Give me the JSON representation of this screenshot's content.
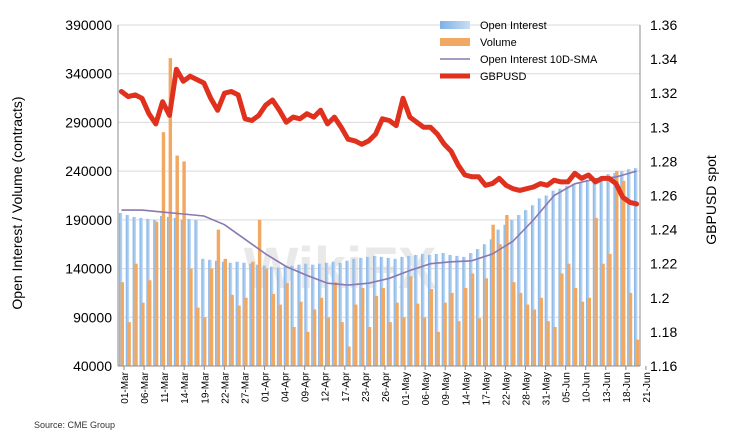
{
  "chart_data": {
    "type": "bar",
    "title": "",
    "ylabel_left": "Open Interest / Volume (contracts)",
    "ylabel_right": "GBPUSD spot",
    "ylim_left": [
      40000,
      390000
    ],
    "yticks_left": [
      40000,
      90000,
      140000,
      190000,
      240000,
      290000,
      340000,
      390000
    ],
    "ylim_right": [
      1.16,
      1.36
    ],
    "yticks_right": [
      "1.16",
      "1.18",
      "1.2",
      "1.22",
      "1.24",
      "1.26",
      "1.28",
      "1.3",
      "1.32",
      "1.34",
      "1.36"
    ],
    "x_tick_labels": [
      "01-Mar",
      "06-Mar",
      "11-Mar",
      "14-Mar",
      "19-Mar",
      "22-Mar",
      "27-Mar",
      "01-Apr",
      "04-Apr",
      "09-Apr",
      "12-Apr",
      "17-Apr",
      "23-Apr",
      "26-Apr",
      "01-May",
      "06-May",
      "09-May",
      "14-May",
      "17-May",
      "22-May",
      "28-May",
      "31-May",
      "05-Jun",
      "10-Jun",
      "13-Jun",
      "18-Jun",
      "21-Jun"
    ],
    "legend": [
      "Open Interest",
      "Volume",
      "Open Interest 10D-SMA",
      "GBPUSD"
    ],
    "legend_position": "top-right",
    "colors": {
      "open_interest": "#9dc3ea",
      "volume": "#f0a862",
      "sma": "#8a78b0",
      "gbpusd": "#e0301e"
    },
    "series": [
      {
        "name": "Open Interest",
        "kind": "bar",
        "axis": "left",
        "values": [
          197000,
          195000,
          193000,
          192000,
          191000,
          190000,
          194000,
          193000,
          192000,
          190000,
          191000,
          190000,
          150000,
          149000,
          148000,
          147000,
          146000,
          147000,
          146000,
          145000,
          144000,
          143000,
          142000,
          141000,
          142000,
          143000,
          144000,
          145000,
          144000,
          145000,
          146000,
          147000,
          146000,
          148000,
          150000,
          151000,
          152000,
          153000,
          152000,
          151000,
          150000,
          152000,
          153000,
          154000,
          155000,
          154000,
          155000,
          156000,
          154000,
          153000,
          152000,
          156000,
          160000,
          165000,
          170000,
          180000,
          185000,
          190000,
          195000,
          200000,
          205000,
          212000,
          215000,
          220000,
          222000,
          225000,
          227000,
          229000,
          231000,
          233000,
          235000,
          237000,
          238000,
          240000,
          242000,
          243000
        ]
      },
      {
        "name": "Volume",
        "kind": "bar",
        "axis": "left",
        "values": [
          126000,
          85000,
          145000,
          105000,
          128000,
          188000,
          280000,
          356000,
          256000,
          250000,
          140000,
          100000,
          90000,
          140000,
          180000,
          150000,
          113000,
          102000,
          110000,
          147000,
          190000,
          140000,
          114000,
          103000,
          125000,
          80000,
          106000,
          75000,
          98000,
          110000,
          90000,
          126000,
          85000,
          60000,
          103000,
          120000,
          80000,
          112000,
          120000,
          85000,
          105000,
          90000,
          132000,
          104000,
          90000,
          119000,
          75000,
          105000,
          115000,
          86000,
          120000,
          135000,
          89000,
          130000,
          185000,
          165000,
          195000,
          126000,
          115000,
          103000,
          98000,
          110000,
          86000,
          80000,
          135000,
          145000,
          120000,
          106000,
          110000,
          192000,
          145000,
          155000,
          240000,
          230000,
          115000,
          67000
        ]
      },
      {
        "name": "Open Interest 10D-SMA",
        "kind": "line",
        "axis": "left",
        "x": [
          0,
          3,
          6,
          9,
          12,
          15,
          18,
          21,
          24,
          27,
          30,
          33,
          36,
          39,
          42,
          45,
          48,
          51,
          54,
          57,
          60,
          63,
          66,
          69,
          72,
          75
        ],
        "values": [
          200000,
          200000,
          198000,
          196000,
          194000,
          185000,
          170000,
          155000,
          142000,
          133000,
          125000,
          123000,
          125000,
          130000,
          138000,
          145000,
          147000,
          148000,
          155000,
          168000,
          190000,
          215000,
          227000,
          232000,
          234000,
          240000
        ]
      },
      {
        "name": "GBPUSD",
        "kind": "line",
        "axis": "right",
        "x": [
          0,
          1,
          2,
          3,
          4,
          5,
          6,
          7,
          8,
          9,
          10,
          11,
          12,
          13,
          14,
          15,
          16,
          17,
          18,
          19,
          20,
          21,
          22,
          23,
          24,
          25,
          26,
          27,
          28,
          29,
          30,
          31,
          32,
          33,
          34,
          35,
          36,
          37,
          38,
          39,
          40,
          41,
          42,
          43,
          44,
          45,
          46,
          47,
          48,
          49,
          50,
          51,
          52,
          53,
          54,
          55,
          56,
          57,
          58,
          59,
          60,
          61,
          62,
          63,
          64,
          65,
          66,
          67,
          68,
          69,
          70,
          71,
          72,
          73,
          74,
          75
        ],
        "values": [
          1.321,
          1.318,
          1.319,
          1.317,
          1.308,
          1.302,
          1.315,
          1.307,
          1.334,
          1.327,
          1.33,
          1.328,
          1.326,
          1.317,
          1.31,
          1.32,
          1.321,
          1.319,
          1.305,
          1.304,
          1.307,
          1.313,
          1.316,
          1.31,
          1.303,
          1.306,
          1.305,
          1.308,
          1.306,
          1.31,
          1.302,
          1.306,
          1.3,
          1.293,
          1.292,
          1.29,
          1.292,
          1.296,
          1.305,
          1.304,
          1.301,
          1.317,
          1.306,
          1.303,
          1.3,
          1.3,
          1.296,
          1.29,
          1.286,
          1.278,
          1.272,
          1.271,
          1.271,
          1.266,
          1.267,
          1.27,
          1.266,
          1.264,
          1.263,
          1.264,
          1.265,
          1.267,
          1.266,
          1.269,
          1.268,
          1.268,
          1.273,
          1.27,
          1.272,
          1.268,
          1.27,
          1.27,
          1.267,
          1.259,
          1.256,
          1.255
        ]
      }
    ],
    "source": "Source: CME Group",
    "watermark": "WikiFX"
  }
}
